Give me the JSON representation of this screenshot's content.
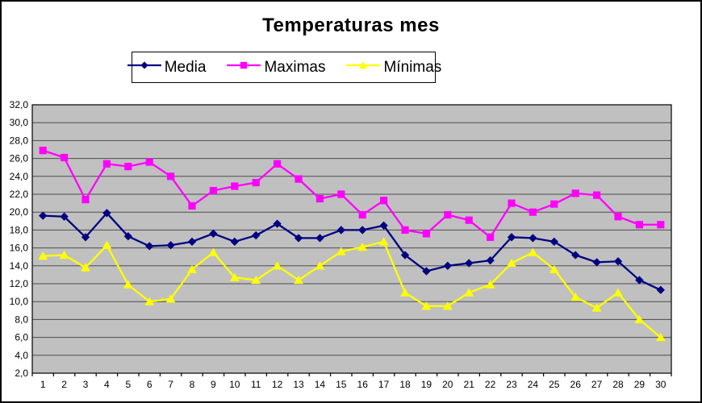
{
  "title": "Temperaturas mes",
  "chart_data": {
    "type": "line",
    "title": "Temperaturas mes",
    "xlabel": "",
    "ylabel": "",
    "x_categories": [
      "1",
      "2",
      "3",
      "4",
      "5",
      "6",
      "7",
      "8",
      "9",
      "10",
      "11",
      "12",
      "13",
      "14",
      "15",
      "16",
      "17",
      "18",
      "19",
      "20",
      "21",
      "22",
      "23",
      "24",
      "25",
      "26",
      "27",
      "28",
      "29",
      "30"
    ],
    "ylim": [
      2,
      32
    ],
    "ytick_step": 2,
    "ytick_labels": [
      "32,0",
      "30,0",
      "28,0",
      "26,0",
      "24,0",
      "22,0",
      "20,0",
      "18,0",
      "16,0",
      "14,0",
      "12,0",
      "10,0",
      "8,0",
      "6,0",
      "4,0",
      "2,0"
    ],
    "grid": true,
    "legend_position": "top",
    "plot_bg_color": "#c0c0c0",
    "gridline_color": "#4d4d4d",
    "axis_color": "#000000",
    "series": [
      {
        "name": "Media",
        "color": "#000080",
        "marker": "diamond",
        "values": [
          19.6,
          19.5,
          17.2,
          19.9,
          17.3,
          16.2,
          16.3,
          16.7,
          17.6,
          16.7,
          17.4,
          18.7,
          17.1,
          17.1,
          18.0,
          18.0,
          18.5,
          15.2,
          13.4,
          14.0,
          14.3,
          14.6,
          17.2,
          17.1,
          16.7,
          15.2,
          14.4,
          14.5,
          12.4,
          11.3
        ]
      },
      {
        "name": "Maximas",
        "color": "#ff00ff",
        "marker": "square",
        "values": [
          26.9,
          26.1,
          21.4,
          25.4,
          25.1,
          25.6,
          24.0,
          20.7,
          22.4,
          22.9,
          23.3,
          25.4,
          23.7,
          21.5,
          22.0,
          19.7,
          21.3,
          18.0,
          17.6,
          19.7,
          19.1,
          17.2,
          21.0,
          20.0,
          20.9,
          22.1,
          21.9,
          19.5,
          18.6,
          18.6
        ]
      },
      {
        "name": "Mínimas",
        "color": "#ffff00",
        "marker": "triangle",
        "values": [
          15.1,
          15.2,
          13.8,
          16.3,
          11.9,
          10.0,
          10.3,
          13.6,
          15.5,
          12.7,
          12.4,
          14.0,
          12.4,
          14.0,
          15.6,
          16.1,
          16.7,
          11.0,
          9.5,
          9.5,
          11.0,
          11.9,
          14.3,
          15.5,
          13.6,
          10.5,
          9.3,
          11.0,
          8.0,
          6.0
        ]
      }
    ]
  }
}
